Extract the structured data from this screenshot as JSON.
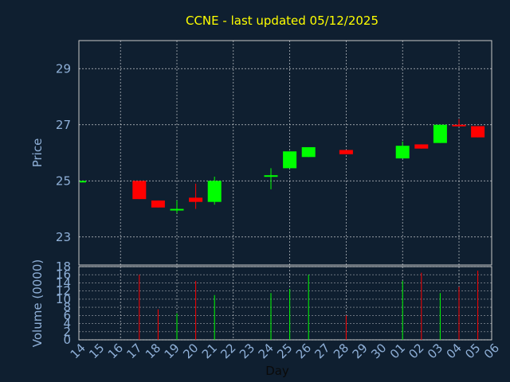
{
  "chart_data": {
    "type": "candlestick",
    "title": "CCNE - last updated 05/12/2025",
    "colors": {
      "background": "#0f1f30",
      "axis": "#c8c8c8",
      "grid": "#ffffff",
      "up": "#00ff00",
      "down": "#ff0000",
      "title": "#ffff00",
      "tick_text": "#8fb0d8"
    },
    "grid": true,
    "price_panel": {
      "ylabel": "Price",
      "ylim": [
        22.0,
        30.0
      ],
      "yticks": [
        "23",
        "25",
        "27",
        "29"
      ]
    },
    "volume_panel": {
      "ylabel": "Volume (0000)",
      "ylim": [
        0,
        18
      ],
      "yticks": [
        "0",
        "2",
        "4",
        "6",
        "8",
        "10",
        "12",
        "14",
        "16",
        "18"
      ]
    },
    "xlabel": "Day",
    "x_ticks": [
      "14",
      "15",
      "16",
      "17",
      "18",
      "19",
      "20",
      "21",
      "22",
      "23",
      "24",
      "25",
      "26",
      "27",
      "28",
      "29",
      "30",
      "01",
      "02",
      "03",
      "04",
      "05",
      "06"
    ],
    "candles": [
      {
        "day": "14",
        "open": 25.0,
        "close": 25.0,
        "high": 25.0,
        "low": 25.0,
        "volume": 0
      },
      {
        "day": "17",
        "open": 25.0,
        "close": 24.35,
        "high": 25.0,
        "low": 24.35,
        "volume": 16
      },
      {
        "day": "18",
        "open": 24.3,
        "close": 24.05,
        "high": 24.3,
        "low": 24.05,
        "volume": 7.5
      },
      {
        "day": "19",
        "open": 24.0,
        "close": 24.0,
        "high": 24.3,
        "low": 23.85,
        "volume": 6.5
      },
      {
        "day": "20",
        "open": 24.4,
        "close": 24.25,
        "high": 24.9,
        "low": 24.0,
        "volume": 14.5
      },
      {
        "day": "21",
        "open": 24.25,
        "close": 25.0,
        "high": 25.15,
        "low": 24.15,
        "volume": 11
      },
      {
        "day": "24",
        "open": 25.2,
        "close": 25.2,
        "high": 25.45,
        "low": 24.7,
        "volume": 11.5
      },
      {
        "day": "25",
        "open": 25.45,
        "close": 26.05,
        "high": 26.05,
        "low": 25.45,
        "volume": 12.5
      },
      {
        "day": "26",
        "open": 25.85,
        "close": 26.2,
        "high": 26.2,
        "low": 25.85,
        "volume": 16
      },
      {
        "day": "28",
        "open": 26.1,
        "close": 25.95,
        "high": 26.1,
        "low": 25.95,
        "volume": 6
      },
      {
        "day": "01",
        "open": 25.8,
        "close": 26.25,
        "high": 26.4,
        "low": 25.8,
        "volume": 14.5
      },
      {
        "day": "02",
        "open": 26.3,
        "close": 26.15,
        "high": 26.3,
        "low": 26.15,
        "volume": 16.5
      },
      {
        "day": "03",
        "open": 26.35,
        "close": 27.0,
        "high": 27.0,
        "low": 26.35,
        "volume": 11.5
      },
      {
        "day": "04",
        "open": 27.0,
        "close": 26.95,
        "high": 27.2,
        "low": 26.95,
        "volume": 13
      },
      {
        "day": "05",
        "open": 26.95,
        "close": 26.55,
        "high": 26.95,
        "low": 26.55,
        "volume": 17
      }
    ]
  }
}
